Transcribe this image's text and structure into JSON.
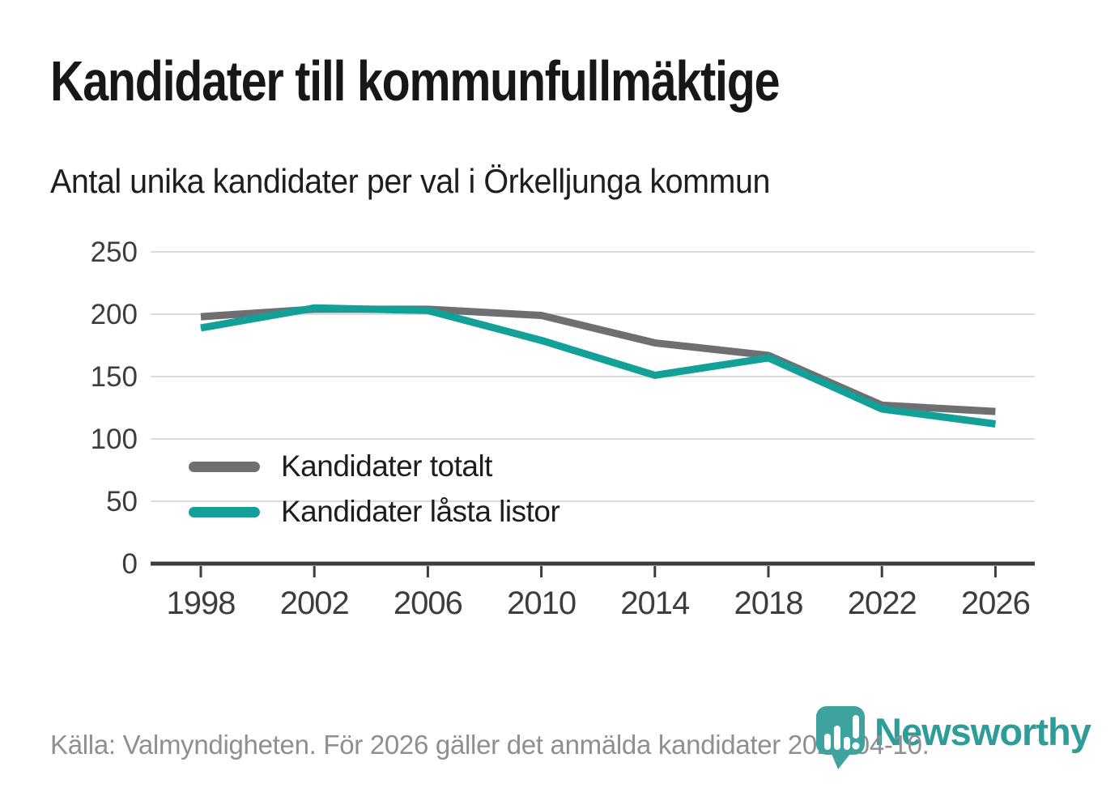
{
  "title": "Kandidater till kommunfullmäktige",
  "subtitle": "Antal unika kandidater per val i Örkelljunga kommun",
  "source": "Källa: Valmyndigheten. För 2026 gäller det anmälda kandidater 2026-04-10.",
  "branding": {
    "logo_text": "Newsworthy",
    "logo_icon": "newsworthy-pin-barchart-icon",
    "logo_text_color": "#2E9C99",
    "pin_color": "#3EA39E"
  },
  "chart_data": {
    "type": "line",
    "title": "Kandidater till kommunfullmäktige",
    "subtitle": "Antal unika kandidater per val i Örkelljunga kommun",
    "categories": [
      "1998",
      "2002",
      "2006",
      "2010",
      "2014",
      "2018",
      "2022",
      "2026"
    ],
    "series": [
      {
        "name": "Kandidater totalt",
        "color": "#6F6F71",
        "values": [
          198,
          204,
          204,
          199,
          177,
          167,
          127,
          122
        ]
      },
      {
        "name": "Kandidater låsta listor",
        "color": "#12A098",
        "values": [
          189,
          205,
          203,
          179,
          151,
          165,
          124,
          112
        ]
      }
    ],
    "xlabel": "",
    "ylabel": "",
    "ylim": [
      0,
      250
    ],
    "yticks": [
      0,
      50,
      100,
      150,
      200,
      250
    ],
    "grid": "horizontal",
    "legend_position": "inside-bottom-left",
    "axis_color": "#3D3D3D",
    "gridline_color": "#DBDBDB"
  }
}
